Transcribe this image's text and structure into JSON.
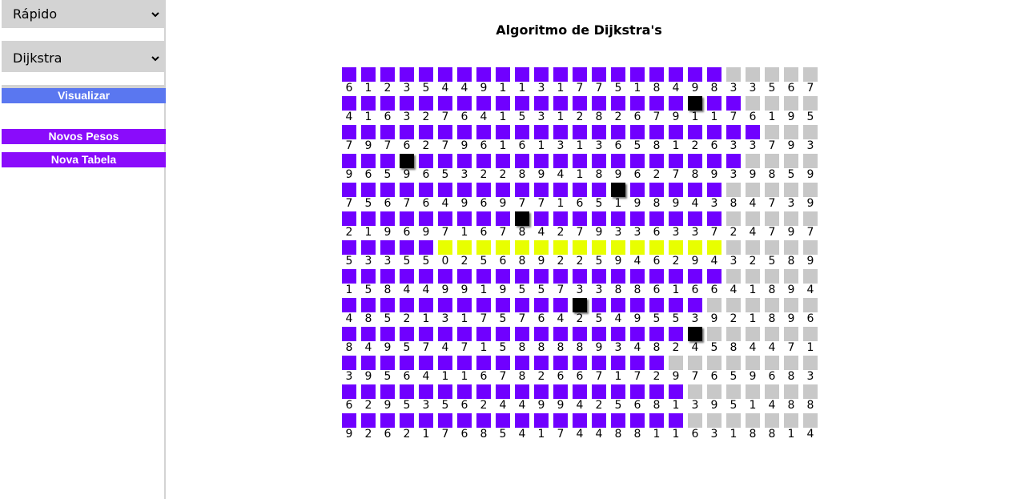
{
  "sidebar": {
    "speed_select": "Rápido",
    "algorithm_select": "Dijkstra",
    "visualize_button": "Visualizar",
    "new_weights_button": "Novos Pesos",
    "new_table_button": "Nova Tabela"
  },
  "title": "Algoritmo de Dijkstra's",
  "colors": {
    "visited": "#7000ff",
    "path": "#e8ff00",
    "wall": "#000000",
    "unvisited": "#c8c8c8",
    "visualize_button": "#5a77f0",
    "action_button": "#8a0cfb"
  },
  "grid": {
    "weights": [
      [
        6,
        1,
        2,
        3,
        5,
        4,
        4,
        9,
        1,
        1,
        3,
        1,
        7,
        7,
        5,
        1,
        8,
        4,
        9,
        8,
        3,
        3,
        5,
        6,
        7
      ],
      [
        4,
        1,
        6,
        3,
        2,
        7,
        6,
        4,
        1,
        5,
        3,
        1,
        2,
        8,
        2,
        6,
        7,
        9,
        1,
        1,
        7,
        6,
        1,
        9,
        5
      ],
      [
        7,
        9,
        7,
        6,
        2,
        7,
        9,
        6,
        1,
        6,
        1,
        3,
        1,
        3,
        6,
        5,
        8,
        1,
        2,
        6,
        3,
        3,
        7,
        9,
        3
      ],
      [
        9,
        6,
        5,
        9,
        6,
        5,
        3,
        2,
        2,
        8,
        9,
        4,
        1,
        8,
        9,
        6,
        2,
        7,
        8,
        9,
        3,
        9,
        8,
        5,
        9
      ],
      [
        7,
        5,
        6,
        7,
        6,
        4,
        9,
        6,
        9,
        7,
        7,
        1,
        6,
        5,
        1,
        9,
        8,
        9,
        4,
        3,
        8,
        4,
        7,
        3,
        9
      ],
      [
        2,
        1,
        9,
        6,
        9,
        7,
        1,
        6,
        7,
        8,
        4,
        2,
        7,
        9,
        3,
        3,
        6,
        3,
        3,
        7,
        2,
        4,
        7,
        9,
        7
      ],
      [
        5,
        3,
        3,
        5,
        5,
        0,
        2,
        5,
        6,
        8,
        9,
        2,
        2,
        5,
        9,
        4,
        6,
        2,
        9,
        4,
        3,
        2,
        5,
        8,
        9
      ],
      [
        1,
        5,
        8,
        4,
        4,
        9,
        9,
        1,
        9,
        5,
        5,
        7,
        3,
        3,
        8,
        8,
        6,
        1,
        6,
        6,
        4,
        1,
        8,
        9,
        4
      ],
      [
        4,
        8,
        5,
        2,
        1,
        3,
        1,
        7,
        5,
        7,
        6,
        4,
        2,
        5,
        4,
        9,
        5,
        5,
        3,
        9,
        2,
        1,
        8,
        9,
        6
      ],
      [
        8,
        4,
        9,
        5,
        7,
        4,
        7,
        1,
        5,
        8,
        8,
        8,
        8,
        9,
        3,
        4,
        8,
        2,
        4,
        5,
        8,
        4,
        4,
        7,
        1
      ],
      [
        3,
        9,
        5,
        6,
        4,
        1,
        1,
        6,
        7,
        8,
        2,
        6,
        6,
        7,
        1,
        7,
        2,
        9,
        7,
        6,
        5,
        9,
        6,
        8,
        3
      ],
      [
        6,
        2,
        9,
        5,
        3,
        5,
        6,
        2,
        4,
        4,
        9,
        9,
        4,
        2,
        5,
        6,
        8,
        1,
        3,
        9,
        5,
        1,
        4,
        8,
        8
      ],
      [
        9,
        2,
        6,
        2,
        1,
        7,
        6,
        8,
        5,
        4,
        1,
        7,
        4,
        4,
        8,
        8,
        1,
        1,
        6,
        3,
        1,
        8,
        8,
        1,
        4
      ]
    ],
    "states": [
      "VVVVVVVVVVVVVVVVVVVVUUUUU",
      "VVVVVVVVVVVVVVVVVVWVVUUUU",
      "VVVVVVVVVVVVVVVVVVVVVVUUU",
      "VVVWVVVVVVVVVVVVVVVVVUUUU",
      "VVVVVVVVVVVVVVWVVVVVUUUUU",
      "VVVVVVVVVWVVVVVVVVVVUUUUU",
      "VVVVVPPPPPPPPPPPPPPPUUUUU",
      "VVVVVVVVVVVVVVVVVVVVUUUUU",
      "VVVVVVVVVVVVWVVVVVVUUUUUU",
      "VVVVVVVVVVVVVVVVVVWUUUUUU",
      "VVVVVVVVVVVVVVVVVUUUUUUUU",
      "VVVVVVVVVVVVVVVVVVUUUUUUU",
      "VVVVVVVVVVVVVVVVVVUUUUUUU"
    ]
  }
}
